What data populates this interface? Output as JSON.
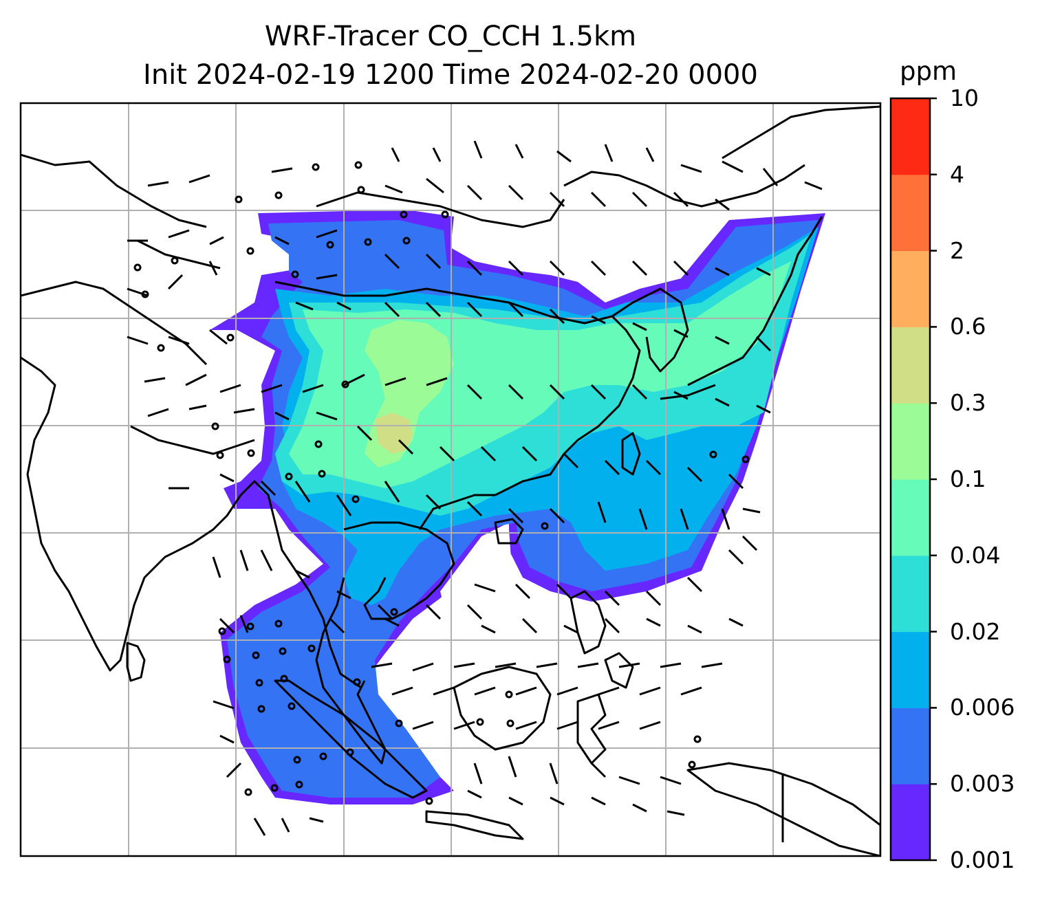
{
  "title_line1": "WRF-Tracer CO_CCH 1.5km",
  "title_line2": "Init 2024-02-19 1200 Time 2024-02-20 0000",
  "colorbar": {
    "unit": "ppm",
    "levels": [
      "0.001",
      "0.003",
      "0.006",
      "0.02",
      "0.04",
      "0.1",
      "0.3",
      "0.6",
      "2",
      "4",
      "10"
    ],
    "colors": [
      "#6628ff",
      "#3573f5",
      "#02b0ed",
      "#2ddfd7",
      "#67fbba",
      "#9bfb97",
      "#d0df86",
      "#ffae5e",
      "#ff7138",
      "#ff2a14"
    ]
  },
  "map": {
    "gridlines": true,
    "plume_colors": {
      "outer": "#6628ff",
      "low": "#3573f5",
      "mid": "#02b0ed",
      "cyan": "#2ddfd7",
      "green": "#67fbba",
      "light_green": "#9bfb97",
      "yellow": "#d0df86"
    },
    "gridline_color": "#b0b0b0",
    "coastline_color": "#000000"
  }
}
